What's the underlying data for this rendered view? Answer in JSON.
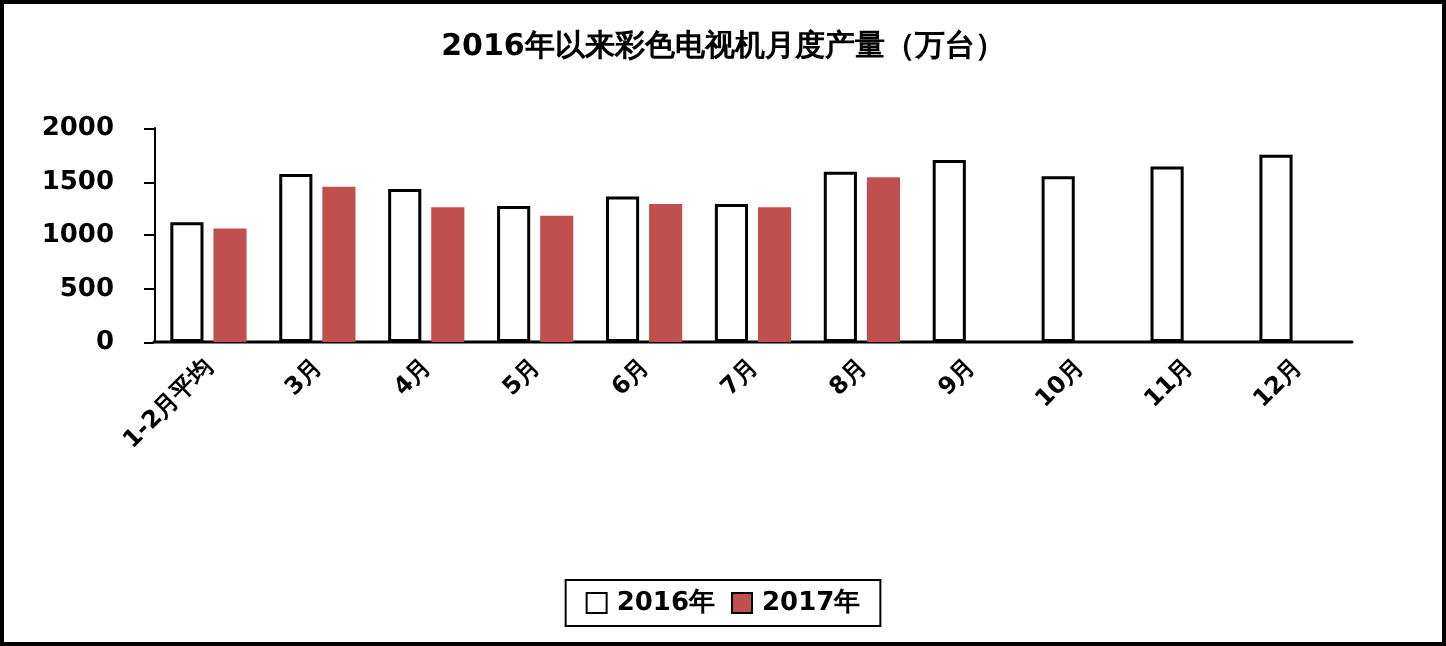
{
  "chart_data": {
    "type": "bar",
    "title": "2016年以来彩色电视机月度产量（万台）",
    "categories": [
      "1-2月平均",
      "3月",
      "4月",
      "5月",
      "6月",
      "7月",
      "8月",
      "9月",
      "10月",
      "11月",
      "12月"
    ],
    "series": [
      {
        "name": "2016年",
        "color": "#ffffff",
        "values": [
          1120,
          1570,
          1430,
          1270,
          1360,
          1290,
          1590,
          1700,
          1550,
          1640,
          1750
        ]
      },
      {
        "name": "2017年",
        "color": "#c0504d",
        "values": [
          1060,
          1450,
          1260,
          1180,
          1290,
          1260,
          1540,
          null,
          null,
          null,
          null
        ]
      }
    ],
    "ylim": [
      0,
      2000
    ],
    "yticks": [
      0,
      500,
      1000,
      1500,
      2000
    ],
    "grid": false,
    "legend": "bottom"
  }
}
